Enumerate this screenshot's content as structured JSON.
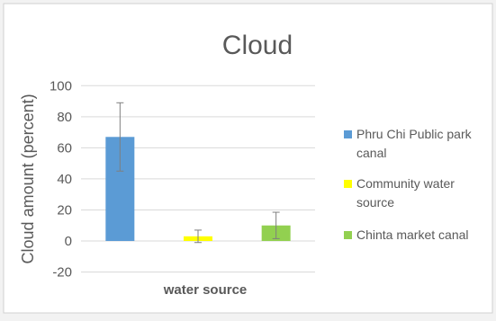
{
  "chart_data": {
    "type": "bar",
    "title": "Cloud",
    "xlabel": "water source",
    "ylabel": "Cloud amount (percent)",
    "ylim": [
      -20,
      100
    ],
    "yticks": [
      -20,
      0,
      20,
      40,
      60,
      80,
      100
    ],
    "grid": true,
    "legend_position": "right",
    "categories": [
      "Phru Chi Public park canal",
      "Community water source",
      "Chinta market canal"
    ],
    "values": [
      67,
      3,
      10
    ],
    "error_bars": [
      {
        "low": 45,
        "high": 89
      },
      {
        "low": -1,
        "high": 7
      },
      {
        "low": 1.5,
        "high": 18.5
      }
    ],
    "legend": [
      {
        "lines": [
          "Phru Chi Public park",
          "canal"
        ],
        "color": "#5b9bd5"
      },
      {
        "lines": [
          "Community water",
          "source"
        ],
        "color": "#ffff00"
      },
      {
        "lines": [
          "Chinta market canal"
        ],
        "color": "#92d050"
      }
    ],
    "colors": {
      "background": "#f2f2f2",
      "plot_background": "#ffffff",
      "grid": "#d9d9d9",
      "text": "#595959",
      "error_bar": "#7f7f7f"
    }
  }
}
